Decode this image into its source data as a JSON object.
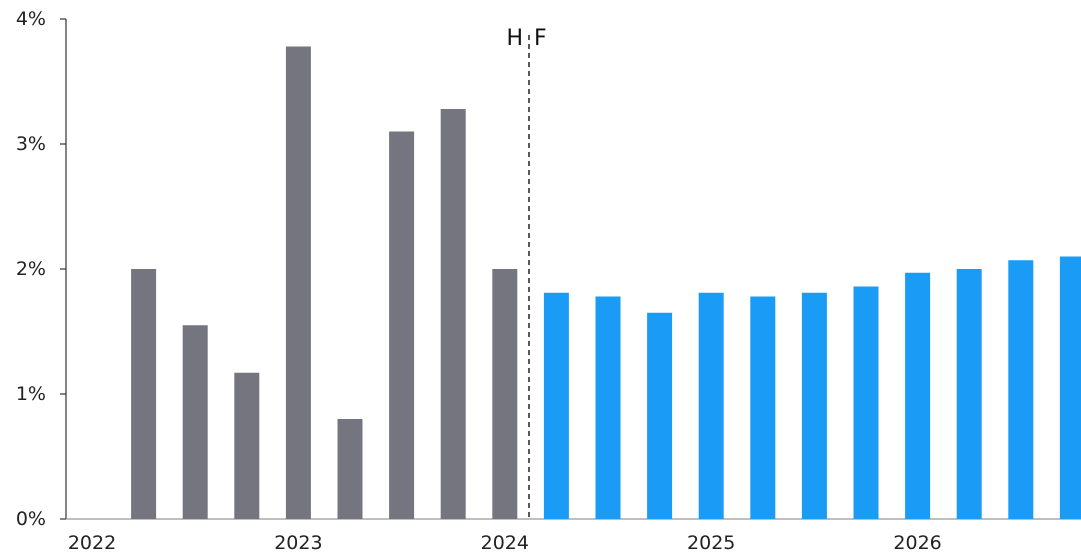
{
  "chart_data": {
    "type": "bar",
    "title": "",
    "xlabel": "",
    "ylabel": "",
    "ylim": [
      0,
      4
    ],
    "y_ticks": [
      "0%",
      "1%",
      "2%",
      "3%",
      "4%"
    ],
    "x_ticks": [
      "2022",
      "2023",
      "2024",
      "2025",
      "2026"
    ],
    "divider_labels": {
      "left": "H",
      "right": "F"
    },
    "grid": false,
    "legend": "none",
    "series": [
      {
        "kind": "historical",
        "color": "#757580",
        "values": [
          2.0,
          1.55,
          1.17,
          3.78,
          0.8,
          3.1,
          3.28,
          2.0
        ]
      },
      {
        "kind": "forecast",
        "color": "#1a9cf6",
        "values": [
          1.81,
          1.78,
          1.65,
          1.81,
          1.78,
          1.81,
          1.86,
          1.97,
          2.0,
          2.07,
          2.1
        ]
      }
    ]
  }
}
